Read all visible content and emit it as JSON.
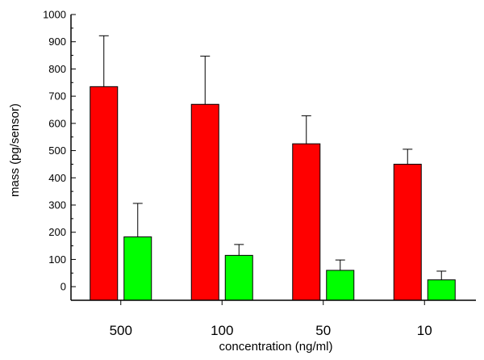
{
  "chart_data": {
    "type": "bar",
    "title": "",
    "xlabel": "concentration (ng/ml)",
    "ylabel": "mass (pg/sensor)",
    "categories": [
      "500",
      "100",
      "50",
      "10"
    ],
    "ylim": [
      -50,
      1000
    ],
    "yticks": [
      "0",
      "100",
      "200",
      "300",
      "400",
      "500",
      "600",
      "700",
      "800",
      "900",
      "1000"
    ],
    "grid": false,
    "legend": "none",
    "series": [
      {
        "color": "#ff0000",
        "values": [
          735,
          670,
          525,
          450
        ],
        "errors": [
          187,
          177,
          103,
          55
        ]
      },
      {
        "color": "#00ff00",
        "values": [
          183,
          115,
          60,
          25
        ],
        "errors": [
          123,
          40,
          38,
          32
        ]
      }
    ]
  }
}
